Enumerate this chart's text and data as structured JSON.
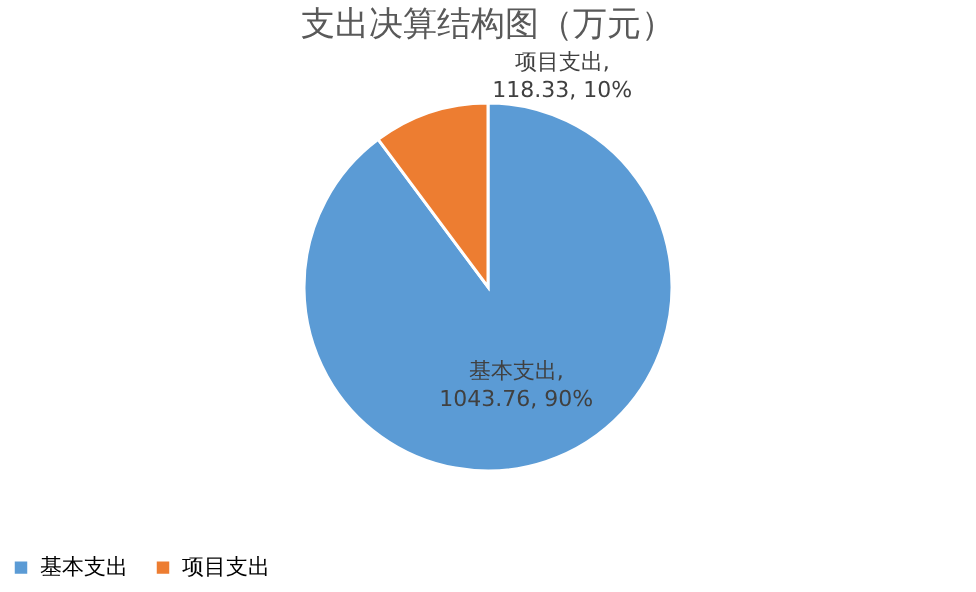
{
  "chart_data": {
    "type": "pie",
    "title": "支出决算结构图（万元）",
    "categories": [
      "基本支出",
      "项目支出"
    ],
    "values": [
      1043.76,
      118.33
    ],
    "colors": [
      "#5b9bd5",
      "#ed7d31"
    ],
    "value_labels": [
      "基本支出,\n1043.76, 90%",
      "项目支出,\n118.33, 10%"
    ],
    "legend": "bottom"
  }
}
